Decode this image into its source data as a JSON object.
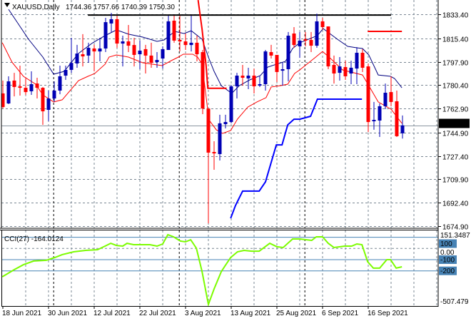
{
  "header": {
    "symbol_label": "XAUUSD,Daily",
    "ohlc_label": "1744.36 1757.66 1740.39 1750.30",
    "icon": "triangle-down-icon"
  },
  "colors": {
    "bull": "#0000b4",
    "bear": "#ff0000",
    "ma_fast": "#000080",
    "ma_slow": "#ff0000",
    "step_line": "#0000ff",
    "level_line": "#ff0000",
    "resistance": "#000000",
    "grid": "#7a8793",
    "cci": "#7cfc00",
    "cci_levels": "#4682b4"
  },
  "chart_data": [
    {
      "type": "candlestick",
      "title": "XAUUSD,Daily",
      "ylim": [
        1674.9,
        1840.0
      ],
      "y_ticks": [
        "1833.40",
        "1815.40",
        "1797.90",
        "1780.40",
        "1762.90",
        "1744.90",
        "1727.40",
        "1709.90",
        "1692.40",
        "1674.90"
      ],
      "current_price": "1750.30",
      "x_ticks": [
        {
          "candle": 1,
          "label": "18 Jun 2021"
        },
        {
          "candle": 9,
          "label": "30 Jun 2021"
        },
        {
          "candle": 17,
          "label": "12 Jul 2021"
        },
        {
          "candle": 25,
          "label": "22 Jul 2021"
        },
        {
          "candle": 33,
          "label": "3 Aug 2021"
        },
        {
          "candle": 41,
          "label": "13 Aug 2021"
        },
        {
          "candle": 49,
          "label": "25 Aug 2021"
        },
        {
          "candle": 57,
          "label": "6 Sep 2021"
        },
        {
          "candle": 65,
          "label": "16 Sep 2021"
        }
      ],
      "grid": true,
      "candles_ohlc": [
        [
          1774.2,
          1783.8,
          1763.0,
          1764.0
        ],
        [
          1766.7,
          1787.0,
          1766.2,
          1783.2
        ],
        [
          1783.8,
          1789.6,
          1772.0,
          1779.0
        ],
        [
          1779.5,
          1795.0,
          1772.6,
          1778.4
        ],
        [
          1778.4,
          1785.4,
          1773.1,
          1775.2
        ],
        [
          1775.8,
          1790.7,
          1773.1,
          1781.1
        ],
        [
          1781.6,
          1785.9,
          1770.4,
          1778.4
        ],
        [
          1778.4,
          1779.0,
          1750.7,
          1760.8
        ],
        [
          1761.9,
          1776.3,
          1753.4,
          1770.4
        ],
        [
          1770.4,
          1783.2,
          1767.8,
          1776.3
        ],
        [
          1776.3,
          1795.0,
          1773.6,
          1787.0
        ],
        [
          1787.5,
          1795.0,
          1784.3,
          1791.8
        ],
        [
          1791.8,
          1815.8,
          1789.6,
          1797.0
        ],
        [
          1796.6,
          1810.5,
          1793.4,
          1804.0
        ],
        [
          1803.5,
          1818.5,
          1794.4,
          1801.9
        ],
        [
          1802.5,
          1812.1,
          1797.1,
          1808.3
        ],
        [
          1807.8,
          1810.5,
          1790.7,
          1805.6
        ],
        [
          1805.6,
          1815.8,
          1798.2,
          1807.8
        ],
        [
          1807.8,
          1830.7,
          1805.1,
          1827.5
        ],
        [
          1826.5,
          1834.5,
          1820.1,
          1829.7
        ],
        [
          1829.7,
          1832.3,
          1808.3,
          1811.5
        ],
        [
          1811.5,
          1817.4,
          1794.4,
          1813.1
        ],
        [
          1813.1,
          1825.4,
          1805.1,
          1809.9
        ],
        [
          1810.4,
          1815.8,
          1794.4,
          1803.0
        ],
        [
          1803.5,
          1813.7,
          1792.3,
          1806.2
        ],
        [
          1807.3,
          1810.5,
          1789.1,
          1802.5
        ],
        [
          1802.5,
          1812.1,
          1793.4,
          1797.1
        ],
        [
          1797.6,
          1805.1,
          1793.4,
          1799.2
        ],
        [
          1800.3,
          1809.4,
          1792.8,
          1807.3
        ],
        [
          1806.7,
          1832.3,
          1806.7,
          1828.1
        ],
        [
          1828.6,
          1832.3,
          1812.1,
          1813.7
        ],
        [
          1814.2,
          1832.3,
          1805.6,
          1813.1
        ],
        [
          1813.1,
          1819.0,
          1806.7,
          1810.4
        ],
        [
          1810.4,
          1832.3,
          1805.6,
          1812.1
        ],
        [
          1812.1,
          1817.4,
          1798.2,
          1803.5
        ],
        [
          1805.1,
          1806.7,
          1758.7,
          1762.9
        ],
        [
          1762.9,
          1762.9,
          1677.0,
          1729.9
        ],
        [
          1730.4,
          1738.4,
          1717.1,
          1729.3
        ],
        [
          1728.8,
          1758.2,
          1724.0,
          1751.8
        ],
        [
          1751.2,
          1758.2,
          1748.0,
          1752.8
        ],
        [
          1752.8,
          1780.6,
          1751.8,
          1779.5
        ],
        [
          1779.5,
          1789.6,
          1770.4,
          1787.5
        ],
        [
          1787.5,
          1795.5,
          1780.0,
          1785.9
        ],
        [
          1785.4,
          1793.4,
          1777.4,
          1787.5
        ],
        [
          1787.5,
          1792.8,
          1774.2,
          1779.5
        ],
        [
          1780.6,
          1787.0,
          1779.0,
          1781.1
        ],
        [
          1781.1,
          1806.7,
          1776.3,
          1805.6
        ],
        [
          1805.1,
          1810.5,
          1800.3,
          1802.5
        ],
        [
          1803.0,
          1803.0,
          1782.7,
          1790.2
        ],
        [
          1791.2,
          1797.6,
          1780.0,
          1792.3
        ],
        [
          1792.3,
          1820.1,
          1783.2,
          1817.4
        ],
        [
          1819.0,
          1823.8,
          1808.3,
          1810.4
        ],
        [
          1809.4,
          1820.1,
          1800.8,
          1813.7
        ],
        [
          1814.7,
          1820.1,
          1809.4,
          1814.2
        ],
        [
          1814.2,
          1820.1,
          1805.1,
          1809.9
        ],
        [
          1809.9,
          1833.9,
          1808.3,
          1828.1
        ],
        [
          1828.1,
          1830.7,
          1821.7,
          1823.8
        ],
        [
          1824.3,
          1824.3,
          1792.3,
          1794.4
        ],
        [
          1795.5,
          1802.5,
          1781.6,
          1789.1
        ],
        [
          1789.6,
          1801.4,
          1783.8,
          1794.4
        ],
        [
          1793.9,
          1798.7,
          1784.3,
          1787.0
        ],
        [
          1789.1,
          1798.7,
          1781.1,
          1793.4
        ],
        [
          1792.8,
          1808.8,
          1781.1,
          1804.6
        ],
        [
          1804.6,
          1807.3,
          1790.2,
          1793.4
        ],
        [
          1794.4,
          1796.6,
          1745.3,
          1752.8
        ],
        [
          1753.4,
          1767.8,
          1747.0,
          1754.4
        ],
        [
          1753.9,
          1766.7,
          1741.6,
          1764.6
        ],
        [
          1764.6,
          1781.6,
          1762.4,
          1774.7
        ],
        [
          1775.2,
          1787.0,
          1764.6,
          1767.8
        ],
        [
          1768.3,
          1776.3,
          1741.6,
          1742.2
        ],
        [
          1744.36,
          1757.66,
          1740.39,
          1750.3
        ]
      ],
      "ma_fast": [
        [
          2,
          1837.1
        ],
        [
          5.5,
          1814.7
        ],
        [
          8,
          1801.4
        ],
        [
          9.9,
          1788.6
        ],
        [
          11.75,
          1790.7
        ],
        [
          14.25,
          1804.1
        ],
        [
          16.75,
          1812.1
        ],
        [
          18.9,
          1817.4
        ],
        [
          20.9,
          1821.7
        ],
        [
          23,
          1818.5
        ],
        [
          25.5,
          1816.3
        ],
        [
          28,
          1813.1
        ],
        [
          29.25,
          1814.2
        ],
        [
          31.1,
          1820.6
        ],
        [
          32.75,
          1819.0
        ],
        [
          34,
          1821.1
        ],
        [
          35.9,
          1814.7
        ],
        [
          37,
          1801.4
        ],
        [
          38,
          1790.7
        ],
        [
          39.25,
          1780.0
        ],
        [
          41.1,
          1774.2
        ],
        [
          42.4,
          1780.0
        ],
        [
          44.25,
          1784.3
        ],
        [
          46.1,
          1787.5
        ],
        [
          47.4,
          1793.9
        ],
        [
          50.5,
          1798.2
        ],
        [
          51.75,
          1807.8
        ],
        [
          53,
          1812.1
        ],
        [
          56.1,
          1817.4
        ],
        [
          57.1,
          1822.7
        ],
        [
          59.6,
          1814.7
        ],
        [
          61.4,
          1809.4
        ],
        [
          63,
          1808.3
        ],
        [
          64,
          1807.8
        ],
        [
          65.1,
          1803.0
        ],
        [
          66.75,
          1788.0
        ],
        [
          68.9,
          1787.0
        ],
        [
          69.6,
          1785.4
        ],
        [
          70.9,
          1778.4
        ]
      ],
      "ma_slow": [
        [
          0.9,
          1812.1
        ],
        [
          2.6,
          1797.6
        ],
        [
          4.6,
          1787.0
        ],
        [
          6.75,
          1781.1
        ],
        [
          8,
          1773.1
        ],
        [
          9.9,
          1767.8
        ],
        [
          11.4,
          1769.4
        ],
        [
          13,
          1777.4
        ],
        [
          14.25,
          1783.8
        ],
        [
          15.9,
          1787.0
        ],
        [
          17.1,
          1789.1
        ],
        [
          18.9,
          1796.0
        ],
        [
          19.6,
          1801.4
        ],
        [
          20.9,
          1803.0
        ],
        [
          23,
          1801.4
        ],
        [
          25.5,
          1797.1
        ],
        [
          28.9,
          1795.0
        ],
        [
          30.5,
          1798.7
        ],
        [
          31.75,
          1801.4
        ],
        [
          32.6,
          1803.5
        ],
        [
          34.25,
          1803.5
        ],
        [
          35.1,
          1801.4
        ],
        [
          35.9,
          1796.0
        ],
        [
          37.1,
          1754.4
        ],
        [
          38.4,
          1746.9
        ],
        [
          39.5,
          1744.3
        ],
        [
          40.9,
          1746.4
        ],
        [
          42.1,
          1755.0
        ],
        [
          43.9,
          1764.0
        ],
        [
          45.5,
          1767.8
        ],
        [
          47.1,
          1771.0
        ],
        [
          48,
          1779.0
        ],
        [
          49.6,
          1780.0
        ],
        [
          50.9,
          1781.1
        ],
        [
          52.1,
          1789.1
        ],
        [
          53,
          1791.8
        ],
        [
          55.5,
          1800.3
        ],
        [
          57,
          1805.6
        ],
        [
          58.4,
          1800.3
        ],
        [
          60.5,
          1791.8
        ],
        [
          64,
          1788.0
        ],
        [
          65.1,
          1780.0
        ],
        [
          66.75,
          1767.8
        ],
        [
          69,
          1762.4
        ],
        [
          70.9,
          1751.8
        ]
      ],
      "step_line": [
        [
          40.9,
          1680.8
        ],
        [
          41.75,
          1690.4
        ],
        [
          43,
          1701.1
        ],
        [
          45.9,
          1701.1
        ],
        [
          47,
          1708.0
        ],
        [
          48.9,
          1735.7
        ],
        [
          49.9,
          1735.7
        ],
        [
          50.9,
          1750.7
        ],
        [
          52,
          1754.9
        ],
        [
          53,
          1754.9
        ],
        [
          54.9,
          1757.1
        ],
        [
          56.1,
          1769.9
        ],
        [
          63.9,
          1769.9
        ]
      ],
      "red_levels": [
        [
          [
            35.2,
            1844.0
          ],
          [
            35.9,
            1822.0
          ],
          [
            36.6,
            1795.0
          ],
          [
            36.9,
            1778.0
          ],
          [
            40.2,
            1778.0
          ]
        ],
        [
          [
            64.9,
            1820.6
          ],
          [
            70.9,
            1820.6
          ]
        ]
      ],
      "resistance_line": [
        [
          15.9,
          1832.8
        ],
        [
          69,
          1832.8
        ]
      ]
    },
    {
      "type": "line",
      "indicator_label": "CCI(27) -164.0124",
      "ylim": [
        -507.479,
        151.3487
      ],
      "y_ticks": [
        {
          "value": 151.3487,
          "label": "151.3487"
        },
        {
          "value": 100,
          "label": "100",
          "boxed": true
        },
        {
          "value": 0,
          "label": "0.00"
        },
        {
          "value": -100,
          "label": "-100",
          "boxed": true
        },
        {
          "value": -200,
          "label": "-200",
          "boxed": true
        },
        {
          "value": -507.479,
          "label": "-507.479"
        }
      ],
      "levels": [
        100,
        -100,
        -200
      ],
      "values": [
        [
          0.9,
          -253
        ],
        [
          3,
          -189
        ],
        [
          4.6,
          -145
        ],
        [
          6.4,
          -112
        ],
        [
          8.6,
          -106
        ],
        [
          10.1,
          -81
        ],
        [
          11.4,
          -55
        ],
        [
          13.4,
          -30
        ],
        [
          15.5,
          -17
        ],
        [
          17.6,
          -11
        ],
        [
          18.9,
          21
        ],
        [
          19.9,
          46
        ],
        [
          20.9,
          27
        ],
        [
          22,
          21
        ],
        [
          22.75,
          46
        ],
        [
          23.9,
          34
        ],
        [
          26.75,
          34
        ],
        [
          28,
          21
        ],
        [
          29,
          40
        ],
        [
          29.9,
          123
        ],
        [
          30.9,
          104
        ],
        [
          32.1,
          66
        ],
        [
          33,
          59
        ],
        [
          33.9,
          78
        ],
        [
          34.9,
          2
        ],
        [
          35.9,
          -208
        ],
        [
          37,
          -500
        ],
        [
          38,
          -361
        ],
        [
          39.25,
          -208
        ],
        [
          39.9,
          -157
        ],
        [
          40.9,
          -81
        ],
        [
          42.1,
          -30
        ],
        [
          43.25,
          -17
        ],
        [
          44.6,
          -24
        ],
        [
          45.9,
          -24
        ],
        [
          47.75,
          46
        ],
        [
          49,
          15
        ],
        [
          50.1,
          8
        ],
        [
          51.75,
          85
        ],
        [
          53,
          85
        ],
        [
          55.1,
          72
        ],
        [
          55.9,
          104
        ],
        [
          57,
          104
        ],
        [
          58,
          46
        ],
        [
          59,
          8
        ],
        [
          60.9,
          21
        ],
        [
          62.1,
          21
        ],
        [
          63,
          40
        ],
        [
          63.9,
          34
        ],
        [
          64.9,
          -119
        ],
        [
          65.9,
          -176
        ],
        [
          67,
          -176
        ],
        [
          68.25,
          -100
        ],
        [
          68.9,
          -100
        ],
        [
          69.9,
          -176
        ],
        [
          70.9,
          -164
        ]
      ]
    }
  ]
}
